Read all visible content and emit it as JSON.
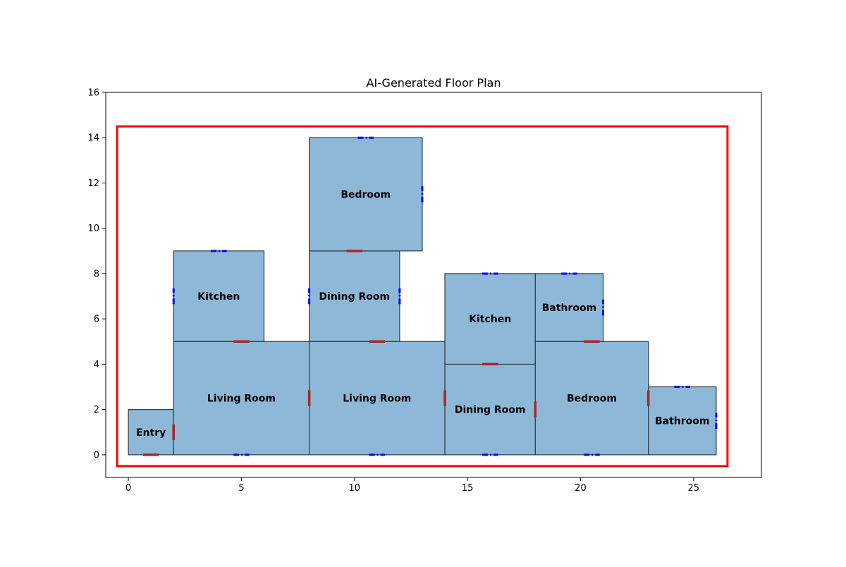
{
  "title": "AI-Generated Floor Plan",
  "chart_data": {
    "type": "floor-plan",
    "xlim": [
      -1,
      28
    ],
    "ylim": [
      -1,
      16
    ],
    "x_ticks": [
      0,
      5,
      10,
      15,
      20,
      25
    ],
    "y_ticks": [
      0,
      2,
      4,
      6,
      8,
      10,
      12,
      14,
      16
    ],
    "boundary": {
      "x0": -0.5,
      "y0": -0.5,
      "x1": 26.5,
      "y1": 14.5,
      "color": "#ff0000"
    },
    "room_fill": "#8db8d8",
    "door_color": "#b22222",
    "window_color": "#0000ff",
    "rooms": [
      {
        "name": "Entry",
        "x0": 0,
        "y0": 0,
        "x1": 2,
        "y1": 2
      },
      {
        "name": "Living Room",
        "x0": 2,
        "y0": 0,
        "x1": 8,
        "y1": 5
      },
      {
        "name": "Kitchen",
        "x0": 2,
        "y0": 5,
        "x1": 6,
        "y1": 9
      },
      {
        "name": "Living Room",
        "x0": 8,
        "y0": 0,
        "x1": 14,
        "y1": 5
      },
      {
        "name": "Dining Room",
        "x0": 8,
        "y0": 5,
        "x1": 12,
        "y1": 9
      },
      {
        "name": "Bedroom",
        "x0": 8,
        "y0": 9,
        "x1": 13,
        "y1": 14
      },
      {
        "name": "Dining Room",
        "x0": 14,
        "y0": 0,
        "x1": 18,
        "y1": 4
      },
      {
        "name": "Kitchen",
        "x0": 14,
        "y0": 4,
        "x1": 18,
        "y1": 8
      },
      {
        "name": "Bedroom",
        "x0": 18,
        "y0": 0,
        "x1": 23,
        "y1": 5
      },
      {
        "name": "Bathroom",
        "x0": 18,
        "y0": 5,
        "x1": 21,
        "y1": 8
      },
      {
        "name": "Bathroom",
        "x0": 23,
        "y0": 0,
        "x1": 26,
        "y1": 3
      }
    ],
    "doors": [
      {
        "orientation": "h",
        "x": 1.0,
        "y": 0
      },
      {
        "orientation": "v",
        "x": 2,
        "y": 1.0
      },
      {
        "orientation": "h",
        "x": 5.0,
        "y": 5
      },
      {
        "orientation": "v",
        "x": 8,
        "y": 2.5
      },
      {
        "orientation": "h",
        "x": 11.0,
        "y": 5
      },
      {
        "orientation": "h",
        "x": 10.0,
        "y": 9
      },
      {
        "orientation": "v",
        "x": 14,
        "y": 2.5
      },
      {
        "orientation": "h",
        "x": 16.0,
        "y": 4
      },
      {
        "orientation": "v",
        "x": 18,
        "y": 2.0
      },
      {
        "orientation": "h",
        "x": 20.5,
        "y": 5
      },
      {
        "orientation": "v",
        "x": 23,
        "y": 2.5
      }
    ],
    "windows": [
      {
        "orientation": "h",
        "x": 4.0,
        "y": 9
      },
      {
        "orientation": "v",
        "x": 2,
        "y": 7.0
      },
      {
        "orientation": "h",
        "x": 10.5,
        "y": 14
      },
      {
        "orientation": "v",
        "x": 13,
        "y": 11.5
      },
      {
        "orientation": "v",
        "x": 8,
        "y": 7.0
      },
      {
        "orientation": "v",
        "x": 12,
        "y": 7.0
      },
      {
        "orientation": "h",
        "x": 16.0,
        "y": 8
      },
      {
        "orientation": "h",
        "x": 19.5,
        "y": 8
      },
      {
        "orientation": "v",
        "x": 21,
        "y": 6.5
      },
      {
        "orientation": "h",
        "x": 5.0,
        "y": 0
      },
      {
        "orientation": "h",
        "x": 11.0,
        "y": 0
      },
      {
        "orientation": "h",
        "x": 16.0,
        "y": 0
      },
      {
        "orientation": "h",
        "x": 20.5,
        "y": 0
      },
      {
        "orientation": "h",
        "x": 24.5,
        "y": 3
      },
      {
        "orientation": "v",
        "x": 26,
        "y": 1.5
      }
    ]
  }
}
